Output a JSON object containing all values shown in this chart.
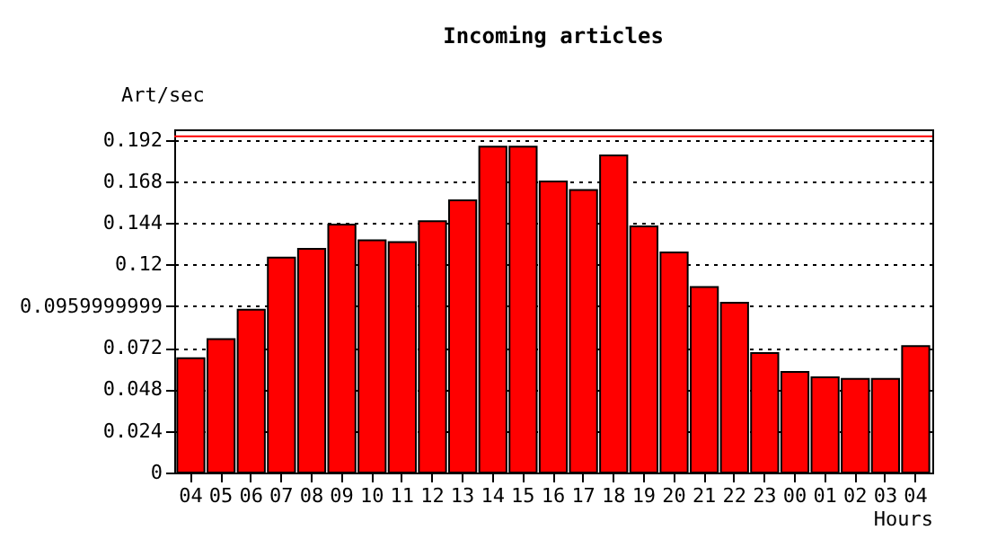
{
  "chart_data": {
    "type": "bar",
    "title": "Incoming articles",
    "xlabel": "Hours",
    "ylabel": "Art/sec",
    "categories": [
      "04",
      "05",
      "06",
      "07",
      "08",
      "09",
      "10",
      "11",
      "12",
      "13",
      "14",
      "15",
      "16",
      "17",
      "18",
      "19",
      "20",
      "21",
      "22",
      "23",
      "00",
      "01",
      "02",
      "03",
      "04"
    ],
    "series": [
      {
        "color": "#ff0000",
        "values": [
          0.066,
          0.077,
          0.094,
          0.124,
          0.129,
          0.143,
          0.134,
          0.133,
          0.145,
          0.157,
          0.188,
          0.188,
          0.168,
          0.163,
          0.183,
          0.142,
          0.127,
          0.107,
          0.098,
          0.069,
          0.058,
          0.055,
          0.054,
          0.054,
          0.073
        ]
      }
    ],
    "ylim": [
      0,
      0.198
    ],
    "yticks": [
      0,
      0.024,
      0.048,
      0.072,
      0.0959999999,
      0.12,
      0.144,
      0.168,
      0.192
    ],
    "grid": "y",
    "ref_lines": [
      {
        "axis": "y",
        "value": 0.194,
        "color": "#ff0000"
      }
    ]
  }
}
